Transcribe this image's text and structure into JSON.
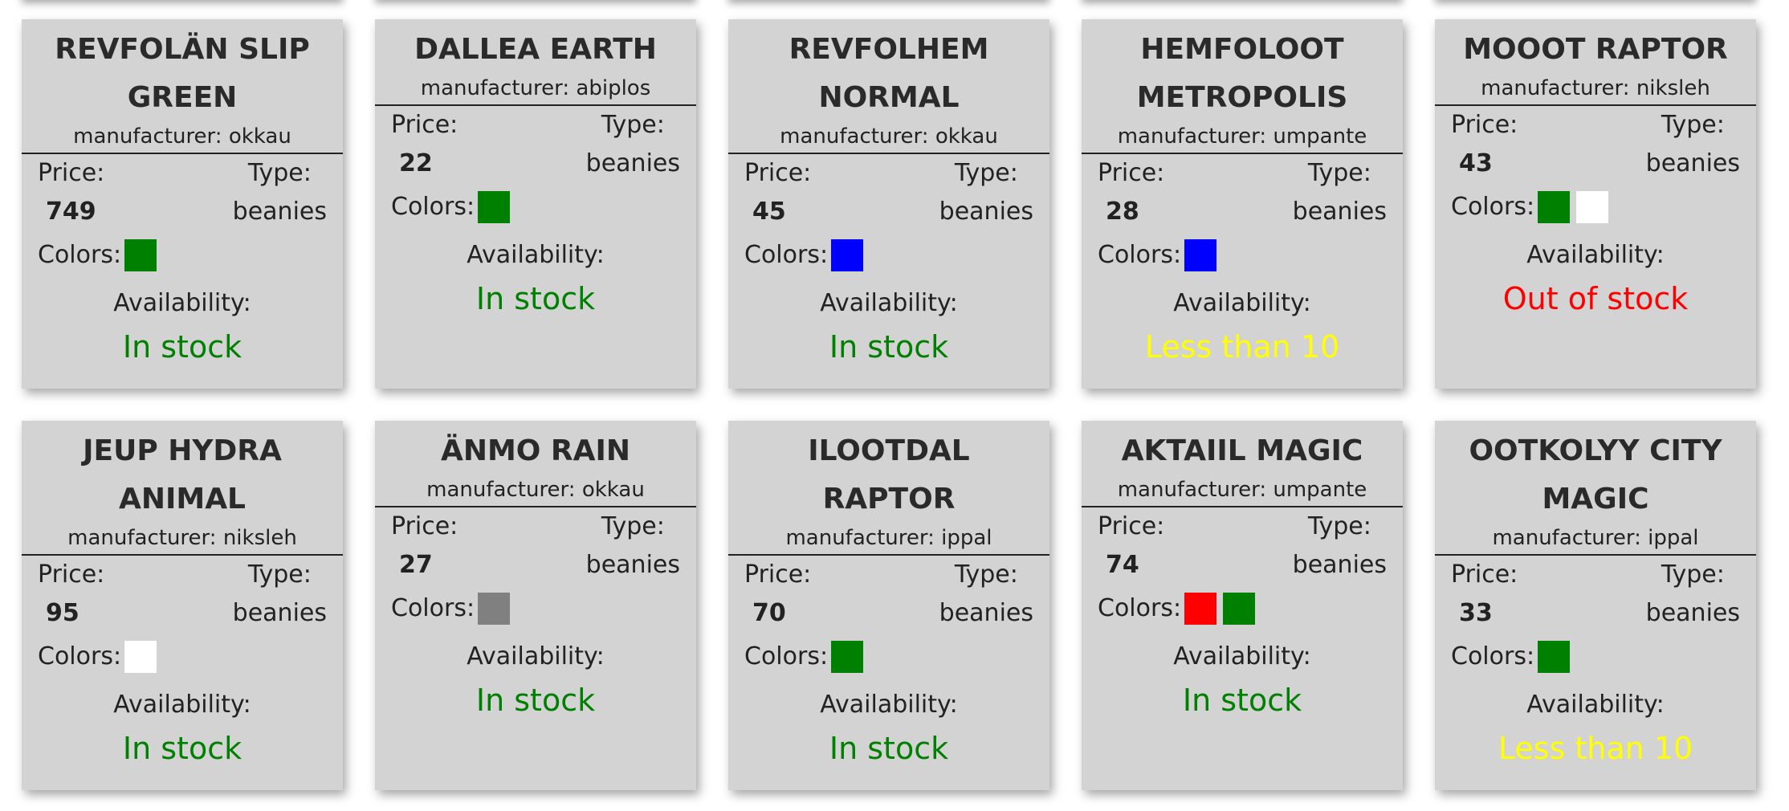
{
  "labels": {
    "manufacturer_prefix": "manufacturer: ",
    "price": "Price:",
    "type": "Type:",
    "colors": "Colors:",
    "availability": "Availability:"
  },
  "availability_colors": {
    "In stock": "#008000",
    "Out of stock": "#ff0000",
    "Less than 10": "#ffff00"
  },
  "products": [
    {
      "name": "REVFOLÄN SLIP GREEN",
      "manufacturer": "okkau",
      "price": "749",
      "type": "beanies",
      "colors": [
        "#008000"
      ],
      "availability": "In stock"
    },
    {
      "name": "DALLEA EARTH",
      "manufacturer": "abiplos",
      "price": "22",
      "type": "beanies",
      "colors": [
        "#008000"
      ],
      "availability": "In stock"
    },
    {
      "name": "REVFOLHEM NORMAL",
      "manufacturer": "okkau",
      "price": "45",
      "type": "beanies",
      "colors": [
        "#0000ff"
      ],
      "availability": "In stock"
    },
    {
      "name": "HEMFOLOOT METROPOLIS",
      "manufacturer": "umpante",
      "price": "28",
      "type": "beanies",
      "colors": [
        "#0000ff"
      ],
      "availability": "Less than 10"
    },
    {
      "name": "MOOOT RAPTOR",
      "manufacturer": "niksleh",
      "price": "43",
      "type": "beanies",
      "colors": [
        "#008000",
        "#ffffff"
      ],
      "availability": "Out of stock"
    },
    {
      "name": "JEUP HYDRA ANIMAL",
      "manufacturer": "niksleh",
      "price": "95",
      "type": "beanies",
      "colors": [
        "#ffffff"
      ],
      "availability": "In stock"
    },
    {
      "name": "ÄNMO RAIN",
      "manufacturer": "okkau",
      "price": "27",
      "type": "beanies",
      "colors": [
        "#808080"
      ],
      "availability": "In stock"
    },
    {
      "name": "ILOOTDAL RAPTOR",
      "manufacturer": "ippal",
      "price": "70",
      "type": "beanies",
      "colors": [
        "#008000"
      ],
      "availability": "In stock"
    },
    {
      "name": "AKTAIIL MAGIC",
      "manufacturer": "umpante",
      "price": "74",
      "type": "beanies",
      "colors": [
        "#ff0000",
        "#008000"
      ],
      "availability": "In stock"
    },
    {
      "name": "OOTKOLYY CITY MAGIC",
      "manufacturer": "ippal",
      "price": "33",
      "type": "beanies",
      "colors": [
        "#008000"
      ],
      "availability": "Less than 10"
    }
  ]
}
